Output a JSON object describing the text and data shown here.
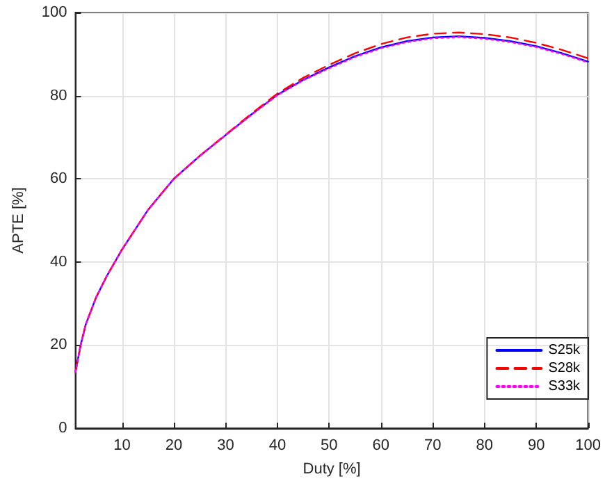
{
  "chart_data": {
    "type": "line",
    "xlabel": "Duty [%]",
    "ylabel": "APTE [%]",
    "xlim": [
      1,
      100
    ],
    "xticks": [
      10,
      20,
      30,
      40,
      50,
      60,
      70,
      80,
      90,
      100
    ],
    "ylim": [
      0,
      100
    ],
    "yticks": [
      0,
      20,
      40,
      60,
      80,
      100
    ],
    "grid": true,
    "legend": "bottom right",
    "marker": "none",
    "x": [
      1,
      2,
      3,
      5,
      7,
      10,
      15,
      20,
      25,
      30,
      35,
      40,
      45,
      50,
      55,
      60,
      65,
      70,
      75,
      80,
      85,
      90,
      95,
      100
    ],
    "series": [
      {
        "name": "S25k",
        "color": "#0000ff",
        "line_style": "solid",
        "values": [
          13.5,
          20,
          25,
          31.5,
          36.5,
          43,
          52.5,
          60,
          65.5,
          70.5,
          75.5,
          80.2,
          83.8,
          86.8,
          89.5,
          91.6,
          93.1,
          94,
          94.3,
          93.9,
          93.1,
          91.9,
          90.2,
          88.2
        ]
      },
      {
        "name": "S28k",
        "color": "#ff0000",
        "line_style": "dashed",
        "values": [
          13.5,
          20,
          25,
          31.5,
          36.5,
          43,
          52.5,
          60,
          65.5,
          70.6,
          75.7,
          80.5,
          84.3,
          87.4,
          90.2,
          92.4,
          94,
          94.9,
          95.2,
          94.8,
          94,
          92.7,
          91,
          89
        ]
      },
      {
        "name": "S33k",
        "color": "#ff00ff",
        "line_style": "dotted",
        "values": [
          13.5,
          20,
          25,
          31.5,
          36.5,
          43,
          52.5,
          60,
          65.5,
          70.5,
          75.4,
          80.1,
          83.7,
          86.6,
          89.3,
          91.4,
          92.9,
          93.8,
          94.1,
          93.7,
          92.9,
          91.7,
          90,
          88
        ]
      }
    ]
  }
}
